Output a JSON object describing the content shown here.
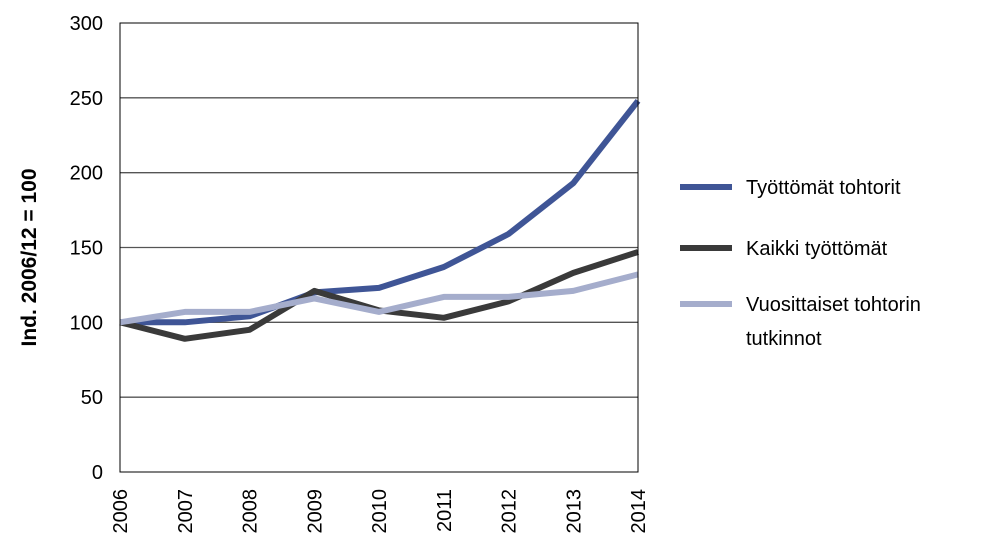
{
  "chart_data": {
    "type": "line",
    "title": "",
    "xlabel": "",
    "ylabel": "Ind. 2006/12  = 100",
    "ylim": [
      0,
      300
    ],
    "yticks": [
      "0",
      "50",
      "100",
      "150",
      "200",
      "250",
      "300"
    ],
    "x": [
      "2006",
      "2007",
      "2008",
      "2009",
      "2010",
      "2011",
      "2012",
      "2013",
      "2014"
    ],
    "grid": "horizontal",
    "legend": "right",
    "series": [
      {
        "name": "Työttömät tohtorit",
        "color": "#3f5596",
        "values": [
          100,
          100,
          104,
          120,
          123,
          137,
          159,
          193,
          248
        ]
      },
      {
        "name": "Kaikki työttömät",
        "color": "#3a3a3a",
        "values": [
          100,
          89,
          95,
          121,
          108,
          103,
          114,
          133,
          147
        ]
      },
      {
        "name": "Vuosittaiset tohtorin tutkinnot",
        "name_lines": [
          "Vuosittaiset tohtorin",
          "tutkinnot"
        ],
        "color": "#a5adcc",
        "values": [
          100,
          107,
          107,
          116,
          107,
          117,
          117,
          121,
          132
        ]
      }
    ]
  }
}
